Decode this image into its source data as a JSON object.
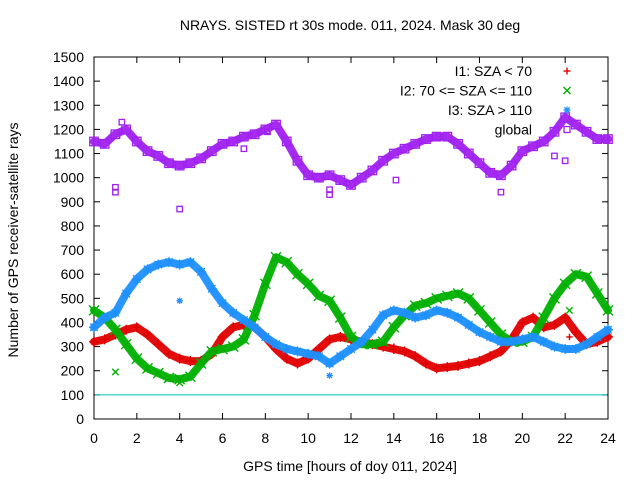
{
  "chart_data": {
    "type": "scatter",
    "title": "NRAYS. SISTED rt 30s mode. 011, 2024. Mask 30 deg",
    "xlabel": "GPS time [hours of doy 011, 2024]",
    "ylabel": "Number of GPS receiver-satellite rays",
    "xlim": [
      0,
      24
    ],
    "ylim": [
      0,
      1500
    ],
    "xticks": [
      "0",
      "2",
      "4",
      "6",
      "8",
      "10",
      "12",
      "14",
      "16",
      "18",
      "20",
      "22",
      "24"
    ],
    "yticks": [
      "0",
      "100",
      "200",
      "300",
      "400",
      "500",
      "600",
      "700",
      "800",
      "900",
      "1000",
      "1100",
      "1200",
      "1300",
      "1400",
      "1500"
    ],
    "reference_line": {
      "y": 100,
      "color": "#00c0c0"
    },
    "legend_position": "top-right",
    "series": [
      {
        "name": "I1: SZA < 70",
        "color": "#e00000",
        "marker": "plus",
        "x": [
          0,
          0.5,
          1,
          1.5,
          2,
          2.5,
          3,
          3.5,
          4,
          4.5,
          5,
          5.5,
          6,
          6.5,
          7,
          7.5,
          8,
          8.5,
          9,
          9.5,
          10,
          10.5,
          11,
          11.5,
          12,
          12.5,
          13,
          13.5,
          14,
          14.5,
          15,
          15.5,
          16,
          16.5,
          17,
          17.5,
          18,
          18.5,
          19,
          19.5,
          20,
          20.5,
          21,
          21.5,
          22,
          22.5,
          23,
          23.5,
          24
        ],
        "values": [
          320,
          330,
          350,
          370,
          380,
          350,
          310,
          270,
          250,
          240,
          240,
          270,
          340,
          380,
          390,
          380,
          340,
          290,
          250,
          230,
          250,
          290,
          330,
          340,
          330,
          320,
          310,
          300,
          290,
          280,
          260,
          230,
          210,
          215,
          220,
          230,
          240,
          260,
          280,
          330,
          400,
          420,
          380,
          390,
          420,
          360,
          310,
          320,
          340
        ],
        "outliers": [
          {
            "x": 14,
            "y": 300
          },
          {
            "x": 22.2,
            "y": 340
          }
        ]
      },
      {
        "name": "I2: 70 <= SZA <= 110",
        "color": "#00b000",
        "marker": "x",
        "x": [
          0,
          0.5,
          1,
          1.5,
          2,
          2.5,
          3,
          3.5,
          4,
          4.5,
          5,
          5.5,
          6,
          6.5,
          7,
          7.5,
          8,
          8.5,
          9,
          9.5,
          10,
          10.5,
          11,
          11.5,
          12,
          12.5,
          13,
          13.5,
          14,
          14.5,
          15,
          15.5,
          16,
          16.5,
          17,
          17.5,
          18,
          18.5,
          19,
          19.5,
          20,
          20.5,
          21,
          21.5,
          22,
          22.5,
          23,
          23.5,
          24
        ],
        "values": [
          450,
          420,
          370,
          310,
          250,
          210,
          190,
          170,
          165,
          175,
          230,
          280,
          290,
          300,
          330,
          430,
          560,
          670,
          650,
          600,
          560,
          510,
          490,
          420,
          340,
          310,
          310,
          320,
          380,
          430,
          470,
          480,
          500,
          510,
          520,
          500,
          450,
          400,
          350,
          320,
          320,
          340,
          420,
          500,
          560,
          600,
          590,
          520,
          450
        ],
        "outliers": [
          {
            "x": 1,
            "y": 195
          },
          {
            "x": 4,
            "y": 150
          },
          {
            "x": 22.2,
            "y": 450
          }
        ]
      },
      {
        "name": "I3: SZA > 110",
        "color": "#1e90ff",
        "marker": "star",
        "x": [
          0,
          0.5,
          1,
          1.5,
          2,
          2.5,
          3,
          3.5,
          4,
          4.5,
          5,
          5.5,
          6,
          6.5,
          7,
          7.5,
          8,
          8.5,
          9,
          9.5,
          10,
          10.5,
          11,
          11.5,
          12,
          12.5,
          13,
          13.5,
          14,
          14.5,
          15,
          15.5,
          16,
          16.5,
          17,
          17.5,
          18,
          18.5,
          19,
          19.5,
          20,
          20.5,
          21,
          21.5,
          22,
          22.5,
          23,
          23.5,
          24
        ],
        "values": [
          380,
          420,
          440,
          520,
          580,
          620,
          640,
          650,
          640,
          650,
          610,
          540,
          480,
          440,
          410,
          380,
          340,
          310,
          290,
          280,
          270,
          260,
          230,
          260,
          290,
          320,
          370,
          430,
          450,
          440,
          420,
          430,
          450,
          440,
          420,
          390,
          360,
          340,
          320,
          320,
          330,
          340,
          320,
          300,
          290,
          290,
          310,
          340,
          370
        ],
        "outliers": [
          {
            "x": 4,
            "y": 490
          },
          {
            "x": 11,
            "y": 180
          },
          {
            "x": 22.2,
            "y": 290
          }
        ]
      },
      {
        "name": "global",
        "color": "#a020f0",
        "marker": "square",
        "x": [
          0,
          0.5,
          1,
          1.5,
          2,
          2.5,
          3,
          3.5,
          4,
          4.5,
          5,
          5.5,
          6,
          6.5,
          7,
          7.5,
          8,
          8.5,
          9,
          9.5,
          10,
          10.5,
          11,
          11.5,
          12,
          12.5,
          13,
          13.5,
          14,
          14.5,
          15,
          15.5,
          16,
          16.5,
          17,
          17.5,
          18,
          18.5,
          19,
          19.5,
          20,
          20.5,
          21,
          21.5,
          22,
          22.5,
          23,
          23.5,
          24
        ],
        "values": [
          1150,
          1140,
          1180,
          1200,
          1150,
          1110,
          1090,
          1060,
          1050,
          1060,
          1080,
          1110,
          1140,
          1150,
          1170,
          1180,
          1200,
          1220,
          1150,
          1070,
          1010,
          1000,
          1010,
          990,
          970,
          1000,
          1030,
          1070,
          1100,
          1120,
          1140,
          1160,
          1170,
          1170,
          1140,
          1100,
          1060,
          1020,
          1010,
          1050,
          1110,
          1130,
          1150,
          1190,
          1250,
          1220,
          1190,
          1160,
          1160
        ],
        "outliers": [
          {
            "x": 1,
            "y": 940
          },
          {
            "x": 1,
            "y": 960
          },
          {
            "x": 1.3,
            "y": 1230
          },
          {
            "x": 4,
            "y": 870
          },
          {
            "x": 7,
            "y": 1120
          },
          {
            "x": 8.1,
            "y": 1190
          },
          {
            "x": 11,
            "y": 930
          },
          {
            "x": 11,
            "y": 950
          },
          {
            "x": 14.1,
            "y": 990
          },
          {
            "x": 19,
            "y": 940
          },
          {
            "x": 21.5,
            "y": 1090
          },
          {
            "x": 22,
            "y": 1070
          }
        ]
      }
    ]
  }
}
